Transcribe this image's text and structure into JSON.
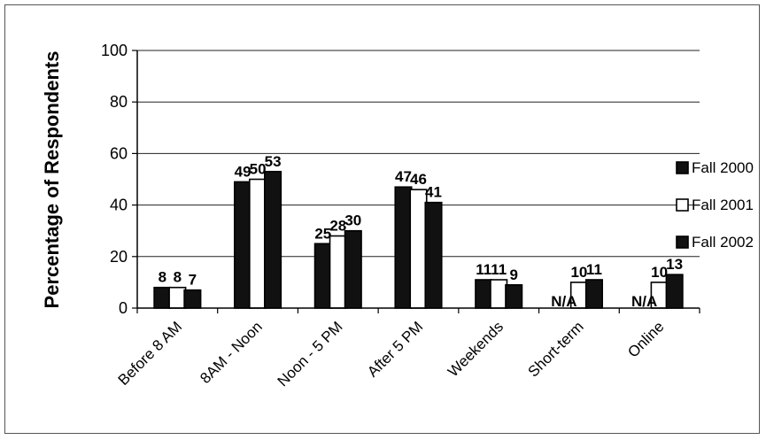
{
  "chart_data": {
    "type": "bar",
    "title": "",
    "xlabel": "",
    "ylabel": "Percentage of Respondents",
    "ylim": [
      0,
      100
    ],
    "yticks": [
      0,
      20,
      40,
      60,
      80,
      100
    ],
    "grid": true,
    "legend_position": "right",
    "categories": [
      "Before 8 AM",
      "8AM - Noon",
      "Noon - 5 PM",
      "After 5 PM",
      "Weekends",
      "Short-term",
      "Online"
    ],
    "series": [
      {
        "name": "Fall 2000",
        "color": "#111111",
        "values": [
          8,
          49,
          25,
          47,
          11,
          null,
          null
        ],
        "labels": [
          "8",
          "49",
          "25",
          "47",
          "11",
          "N/A",
          "N/A"
        ]
      },
      {
        "name": "Fall 2001",
        "color": "#ffffff",
        "values": [
          8,
          50,
          28,
          46,
          11,
          10,
          10
        ],
        "labels": [
          "8",
          "50",
          "28",
          "46",
          "11",
          "10",
          "10"
        ]
      },
      {
        "name": "Fall 2002",
        "color": "#111111",
        "values": [
          7,
          53,
          30,
          41,
          9,
          11,
          13
        ],
        "labels": [
          "7",
          "53",
          "30",
          "41",
          "9",
          "11",
          "13"
        ]
      }
    ]
  }
}
